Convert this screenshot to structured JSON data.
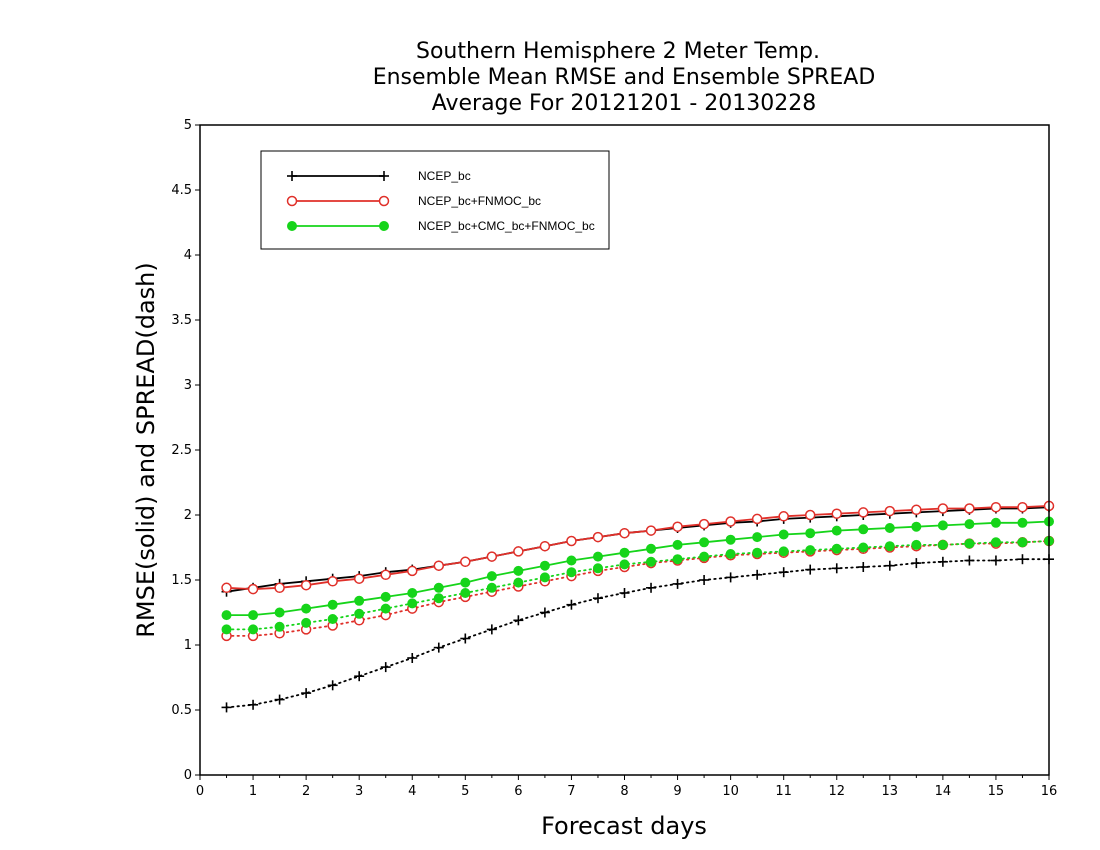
{
  "chart_data": {
    "type": "line",
    "title": [
      "Southern Hemisphere 2 Meter Temp.",
      "Ensemble Mean RMSE and Ensemble SPREAD",
      "Average For 20121201 - 20130228"
    ],
    "xlabel": "Forecast days",
    "ylabel": "RMSE(solid) and SPREAD(dash)",
    "xlim": [
      0,
      16
    ],
    "ylim": [
      0,
      5
    ],
    "xticks": [
      0,
      1,
      2,
      3,
      4,
      5,
      6,
      7,
      8,
      9,
      10,
      11,
      12,
      13,
      14,
      15,
      16
    ],
    "xtick_labels": [
      "0",
      "1",
      "2",
      "3",
      "4",
      "5",
      "6",
      "7",
      "8",
      "9",
      "10",
      "11",
      "12",
      "13",
      "14",
      "15",
      "16"
    ],
    "yticks": [
      0,
      0.5,
      1,
      1.5,
      2,
      2.5,
      3,
      3.5,
      4,
      4.5,
      5
    ],
    "ytick_labels": [
      "0",
      "0.5",
      "1",
      "1.5",
      "2",
      "2.5",
      "3",
      "3.5",
      "4",
      "4.5",
      "5"
    ],
    "grid": "horizontal dotted",
    "legend_placement": "top-left",
    "x": [
      0.5,
      1,
      1.5,
      2,
      2.5,
      3,
      3.5,
      4,
      4.5,
      5,
      5.5,
      6,
      6.5,
      7,
      7.5,
      8,
      8.5,
      9,
      9.5,
      10,
      10.5,
      11,
      11.5,
      12,
      12.5,
      13,
      13.5,
      14,
      14.5,
      15,
      15.5,
      16
    ],
    "series": [
      {
        "name": "NCEP_bc",
        "color": "#000000",
        "marker": "plus",
        "rmse": [
          1.41,
          1.44,
          1.47,
          1.49,
          1.51,
          1.53,
          1.56,
          1.58,
          1.61,
          1.64,
          1.68,
          1.72,
          1.76,
          1.8,
          1.83,
          1.86,
          1.88,
          1.9,
          1.92,
          1.94,
          1.95,
          1.97,
          1.98,
          1.99,
          2.0,
          2.01,
          2.02,
          2.03,
          2.04,
          2.05,
          2.05,
          2.06
        ],
        "spread": [
          0.52,
          0.54,
          0.58,
          0.63,
          0.69,
          0.76,
          0.83,
          0.9,
          0.98,
          1.05,
          1.12,
          1.19,
          1.25,
          1.31,
          1.36,
          1.4,
          1.44,
          1.47,
          1.5,
          1.52,
          1.54,
          1.56,
          1.58,
          1.59,
          1.6,
          1.61,
          1.63,
          1.64,
          1.65,
          1.65,
          1.66,
          1.66
        ]
      },
      {
        "name": "NCEP_bc+FNMOC_bc",
        "color": "#e0302a",
        "marker": "open-circle",
        "rmse": [
          1.44,
          1.43,
          1.44,
          1.46,
          1.49,
          1.51,
          1.54,
          1.57,
          1.61,
          1.64,
          1.68,
          1.72,
          1.76,
          1.8,
          1.83,
          1.86,
          1.88,
          1.91,
          1.93,
          1.95,
          1.97,
          1.99,
          2.0,
          2.01,
          2.02,
          2.03,
          2.04,
          2.05,
          2.05,
          2.06,
          2.06,
          2.07
        ],
        "spread": [
          1.07,
          1.07,
          1.09,
          1.12,
          1.15,
          1.19,
          1.23,
          1.28,
          1.33,
          1.37,
          1.41,
          1.45,
          1.49,
          1.53,
          1.57,
          1.6,
          1.63,
          1.65,
          1.67,
          1.69,
          1.7,
          1.71,
          1.72,
          1.73,
          1.74,
          1.75,
          1.76,
          1.77,
          1.78,
          1.78,
          1.79,
          1.8
        ]
      },
      {
        "name": "NCEP_bc+CMC_bc+FNMOC_bc",
        "color": "#16d41a",
        "marker": "filled-circle",
        "rmse": [
          1.23,
          1.23,
          1.25,
          1.28,
          1.31,
          1.34,
          1.37,
          1.4,
          1.44,
          1.48,
          1.53,
          1.57,
          1.61,
          1.65,
          1.68,
          1.71,
          1.74,
          1.77,
          1.79,
          1.81,
          1.83,
          1.85,
          1.86,
          1.88,
          1.89,
          1.9,
          1.91,
          1.92,
          1.93,
          1.94,
          1.94,
          1.95
        ],
        "spread": [
          1.12,
          1.12,
          1.14,
          1.17,
          1.2,
          1.24,
          1.28,
          1.32,
          1.36,
          1.4,
          1.44,
          1.48,
          1.52,
          1.56,
          1.59,
          1.62,
          1.64,
          1.66,
          1.68,
          1.7,
          1.71,
          1.72,
          1.73,
          1.74,
          1.75,
          1.76,
          1.77,
          1.77,
          1.78,
          1.79,
          1.79,
          1.8
        ]
      }
    ]
  }
}
